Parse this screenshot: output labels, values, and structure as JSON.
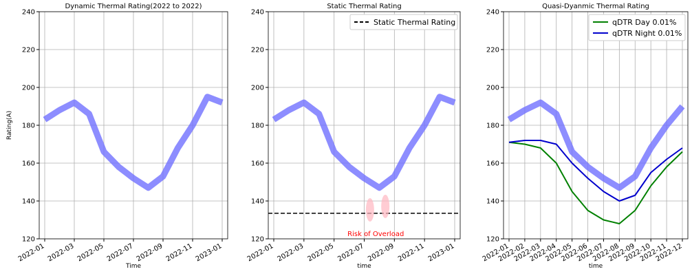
{
  "chart_data": [
    {
      "type": "line",
      "title": "Dynamic Thermal Rating(2022 to 2022)",
      "x_label": "Time",
      "y_label": "Rating(A)",
      "x": [
        "2022-01",
        "2022-02",
        "2022-03",
        "2022-04",
        "2022-05",
        "2022-06",
        "2022-07",
        "2022-08",
        "2022-09",
        "2022-10",
        "2022-11",
        "2022-12",
        "2023-01"
      ],
      "series": [
        {
          "color": "#7070ff",
          "values": [
            183,
            188,
            192,
            186,
            166,
            158,
            152,
            147,
            153,
            168,
            180,
            195,
            192
          ]
        }
      ],
      "xlim": [
        "2022-01",
        "2023-01"
      ],
      "xticks": [
        "2022-01",
        "2022-03",
        "2022-05",
        "2022-07",
        "2022-09",
        "2022-11",
        "2023-01"
      ],
      "ylim": [
        120,
        240
      ],
      "yticks": [
        120,
        140,
        160,
        180,
        200,
        220,
        240
      ],
      "grid": true
    },
    {
      "type": "line",
      "title": "Static Thermal Rating",
      "x_label": "time",
      "x": [
        "2022-01",
        "2022-02",
        "2022-03",
        "2022-04",
        "2022-05",
        "2022-06",
        "2022-07",
        "2022-08",
        "2022-09",
        "2022-10",
        "2022-11",
        "2022-12",
        "2023-01"
      ],
      "series": [
        {
          "color": "#7070ff",
          "values": [
            183,
            188,
            192,
            186,
            166,
            158,
            152,
            147,
            153,
            168,
            180,
            195,
            192
          ]
        }
      ],
      "hline": {
        "name": "Static Thermal Rating",
        "value": 133.5,
        "color": "#000000"
      },
      "annotation": "Risk of Overload",
      "legend": "upper right",
      "xlim": [
        "2022-01",
        "2023-01"
      ],
      "xticks": [
        "2022-01",
        "2022-03",
        "2022-05",
        "2022-07",
        "2022-09",
        "2022-11",
        "2023-01"
      ],
      "ylim": [
        120,
        240
      ],
      "yticks": [
        120,
        140,
        160,
        180,
        200,
        220,
        240
      ],
      "grid": true
    },
    {
      "type": "line",
      "title": "Quasi-Dyanmic Thermal Rating",
      "x_label": "time",
      "x": [
        "2022-01",
        "2022-02",
        "2022-03",
        "2022-04",
        "2022-05",
        "2022-06",
        "2022-07",
        "2022-08",
        "2022-09",
        "2022-10",
        "2022-11",
        "2022-12"
      ],
      "series": [
        {
          "color": "#7070ff",
          "values": [
            183,
            188,
            192,
            186,
            166,
            158,
            152,
            147,
            153,
            168,
            180,
            190
          ]
        },
        {
          "name": "qDTR Day 0.01%",
          "color": "#008000",
          "values": [
            171,
            170,
            168,
            160,
            145,
            135,
            130,
            128,
            135,
            148,
            158,
            166
          ]
        },
        {
          "name": "qDTR Night 0.01%",
          "color": "#0000cc",
          "values": [
            171,
            172,
            172,
            170,
            160,
            152,
            145,
            140,
            143,
            155,
            162,
            168
          ]
        }
      ],
      "legend": "upper right",
      "xlim": [
        "2022-01",
        "2022-12"
      ],
      "xticks": [
        "2022-01",
        "2022-02",
        "2022-03",
        "2022-04",
        "2022-05",
        "2022-06",
        "2022-07",
        "2022-08",
        "2022-09",
        "2022-10",
        "2022-11",
        "2022-12"
      ],
      "ylim": [
        120,
        240
      ],
      "yticks": [
        120,
        140,
        160,
        180,
        200,
        220,
        240
      ],
      "grid": true
    }
  ]
}
